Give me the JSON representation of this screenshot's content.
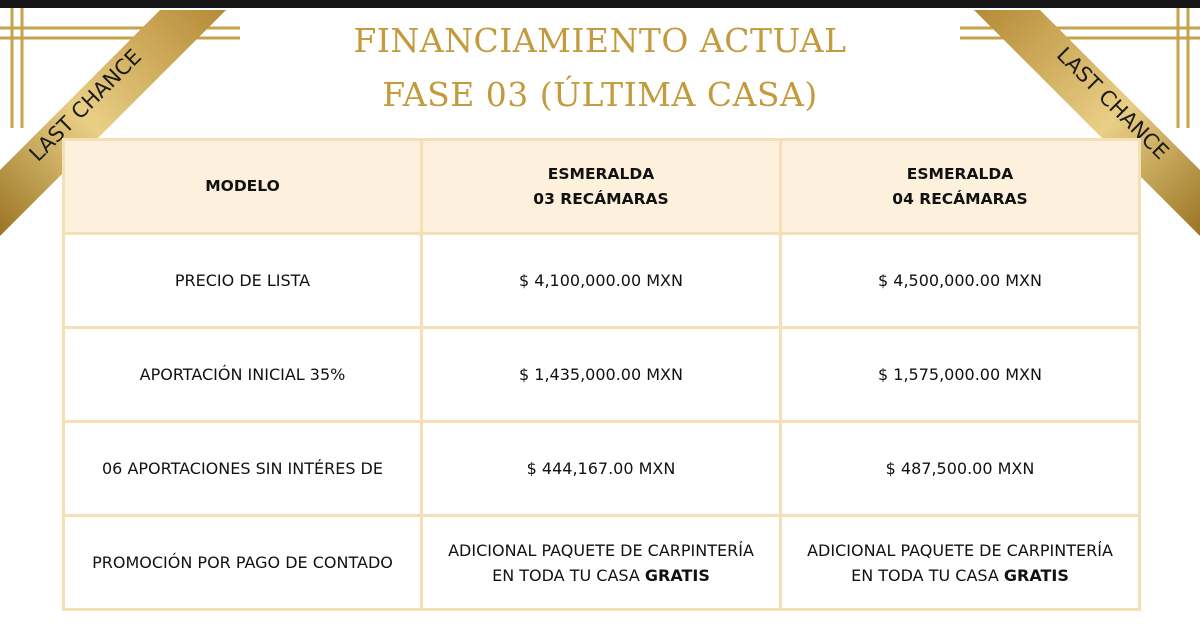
{
  "title": {
    "line1": "FINANCIAMIENTO ACTUAL",
    "line2": "FASE 03 (ÚLTIMA CASA)"
  },
  "ribbons": {
    "left": "LAST CHANCE",
    "right": "LAST CHANCE"
  },
  "colors": {
    "gold": "#c39a3c",
    "header_bg": "#fdf0dd",
    "border": "#f5dfb6"
  },
  "table": {
    "header": {
      "label": "MODELO",
      "col1_line1": "ESMERALDA",
      "col1_line2": "03 RECÁMARAS",
      "col2_line1": "ESMERALDA",
      "col2_line2": "04 RECÁMARAS"
    },
    "rows": [
      {
        "label": "PRECIO DE LISTA",
        "col1": "$ 4,100,000.00 MXN",
        "col2": "$ 4,500,000.00 MXN"
      },
      {
        "label": "APORTACIÓN INICIAL 35%",
        "col1": "$ 1,435,000.00 MXN",
        "col2": "$ 1,575,000.00 MXN"
      },
      {
        "label": "06 APORTACIONES SIN INTÉRES DE",
        "col1": "$ 444,167.00 MXN",
        "col2": "$ 487,500.00 MXN"
      }
    ],
    "promo": {
      "label": "PROMOCIÓN POR PAGO DE CONTADO",
      "col1_line1": "ADICIONAL PAQUETE DE CARPINTERÍA",
      "col1_line2": "EN TODA TU CASA",
      "col1_bold": "GRATIS",
      "col2_line1": "ADICIONAL PAQUETE DE CARPINTERÍA",
      "col2_line2": "EN TODA TU CASA",
      "col2_bold": "GRATIS"
    }
  }
}
